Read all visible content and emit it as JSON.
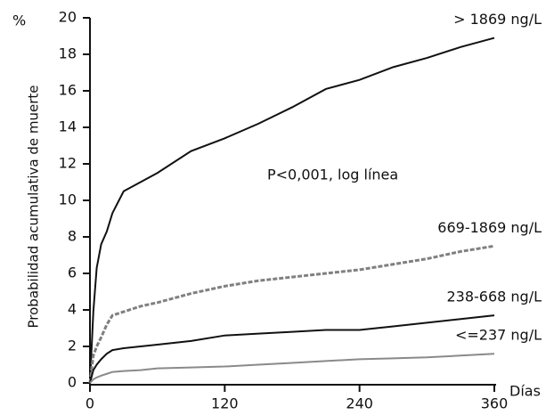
{
  "chart_data": {
    "type": "line",
    "y_label": "Probabilidad acumulativa de muerte",
    "y_unit": "%",
    "x_label": "Días",
    "annotation": "P<0,001, log línea",
    "x": [
      0,
      3,
      6,
      10,
      15,
      20,
      30,
      45,
      60,
      90,
      120,
      150,
      180,
      210,
      240,
      270,
      300,
      330,
      360
    ],
    "series": [
      {
        "name": "> 1869 ng/L",
        "color": "#111111",
        "style": "solid",
        "values": [
          0,
          3.9,
          6.3,
          7.6,
          8.3,
          9.3,
          10.5,
          11,
          11.5,
          12.7,
          13.4,
          14.2,
          15.1,
          16.1,
          16.6,
          17.3,
          17.8,
          18.4,
          18.9
        ]
      },
      {
        "name": "669-1869 ng/L",
        "color": "#808080",
        "style": "dashed",
        "values": [
          0,
          1.5,
          2,
          2.5,
          3.2,
          3.7,
          3.9,
          4.2,
          4.4,
          4.9,
          5.3,
          5.6,
          5.8,
          6,
          6.2,
          6.5,
          6.8,
          7.2,
          7.5
        ]
      },
      {
        "name": "238-668 ng/L",
        "color": "#111111",
        "style": "solid",
        "values": [
          0,
          0.7,
          1,
          1.3,
          1.6,
          1.8,
          1.9,
          2,
          2.1,
          2.3,
          2.6,
          2.7,
          2.8,
          2.9,
          2.9,
          3.1,
          3.3,
          3.5,
          3.7
        ]
      },
      {
        "name": "<=237 ng/L",
        "color": "#8a8a8a",
        "style": "solid",
        "values": [
          0,
          0.2,
          0.3,
          0.4,
          0.5,
          0.6,
          0.65,
          0.7,
          0.8,
          0.85,
          0.9,
          1,
          1.1,
          1.2,
          1.3,
          1.35,
          1.4,
          1.5,
          1.6
        ]
      }
    ],
    "xlim": [
      0,
      360
    ],
    "xticks": [
      0,
      120,
      240,
      360
    ],
    "ylim": [
      0,
      20
    ],
    "yticks": [
      0,
      2,
      4,
      6,
      8,
      10,
      12,
      14,
      16,
      18,
      20
    ]
  }
}
